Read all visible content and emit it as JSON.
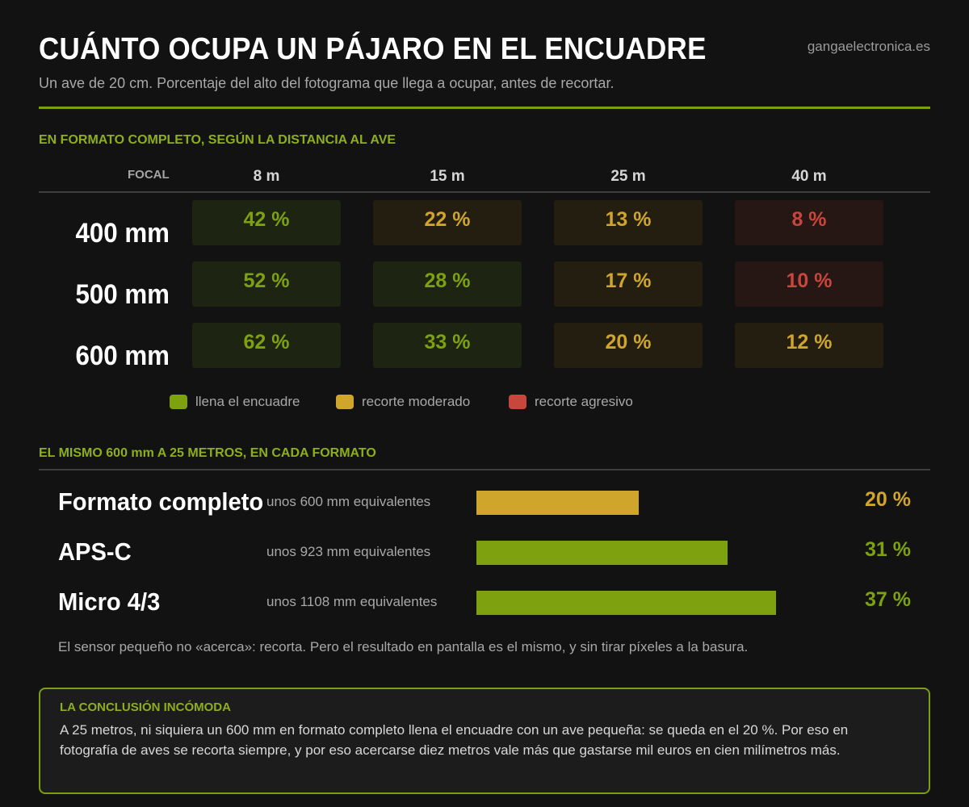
{
  "header": {
    "title": "CUÁNTO OCUPA UN PÁJARO EN EL ENCUADRE",
    "site": "gangaelectronica.es",
    "subtitle": "Un ave de 20 cm. Porcentaje del alto del fotograma que llega a ocupar, antes de recortar."
  },
  "colors": {
    "accent": "#7d9e10",
    "fill": "#7ea10f",
    "moderate": "#cfa52b",
    "aggressive": "#c9463c"
  },
  "chart_data": [
    {
      "type": "table",
      "title": "EN FORMATO COMPLETO, SEGÚN LA DISTANCIA AL AVE",
      "row_header": "FOCAL",
      "columns": [
        "8 m",
        "15 m",
        "25 m",
        "40 m"
      ],
      "rows": [
        {
          "label": "400 mm",
          "values": [
            42,
            22,
            13,
            8
          ],
          "display": [
            "42 %",
            "22 %",
            "13 %",
            "8 %"
          ],
          "levels": [
            "fill",
            "moderate",
            "moderate",
            "aggressive"
          ]
        },
        {
          "label": "500 mm",
          "values": [
            52,
            28,
            17,
            10
          ],
          "display": [
            "52 %",
            "28 %",
            "17 %",
            "10 %"
          ],
          "levels": [
            "fill",
            "fill",
            "moderate",
            "aggressive"
          ]
        },
        {
          "label": "600 mm",
          "values": [
            62,
            33,
            20,
            12
          ],
          "display": [
            "62 %",
            "33 %",
            "20 %",
            "12 %"
          ],
          "levels": [
            "fill",
            "fill",
            "moderate",
            "moderate"
          ]
        }
      ],
      "legend": [
        {
          "key": "fill",
          "label": "llena el encuadre",
          "color": "#7ea10f"
        },
        {
          "key": "moderate",
          "label": "recorte moderado",
          "color": "#cfa52b"
        },
        {
          "key": "aggressive",
          "label": "recorte agresivo",
          "color": "#c9463c"
        }
      ]
    },
    {
      "type": "bar",
      "title": "EL MISMO 600 mm A 25 METROS, EN CADA FORMATO",
      "categories": [
        "Formato completo",
        "APS-C",
        "Micro 4/3"
      ],
      "sublabels": [
        "unos 600 mm equivalentes",
        "unos 923 mm equivalentes",
        "unos 1108 mm equivalentes"
      ],
      "values": [
        20,
        31,
        37
      ],
      "display": [
        "20 %",
        "31 %",
        "37 %"
      ],
      "levels": [
        "moderate",
        "fill",
        "fill"
      ],
      "xlim": [
        0,
        50
      ],
      "note": "El sensor pequeño no «acerca»: recorta. Pero el resultado en pantalla es el mismo, y sin tirar píxeles a la basura."
    }
  ],
  "conclusion": {
    "heading": "LA CONCLUSIÓN INCÓMODA",
    "text": "A 25 metros, ni siquiera un 600 mm en formato completo llena el encuadre con un ave pequeña: se queda en el 20 %. Por eso en fotografía de aves se recorta siempre, y por eso acercarse diez metros vale más que gastarse mil euros en cien milímetros más."
  }
}
